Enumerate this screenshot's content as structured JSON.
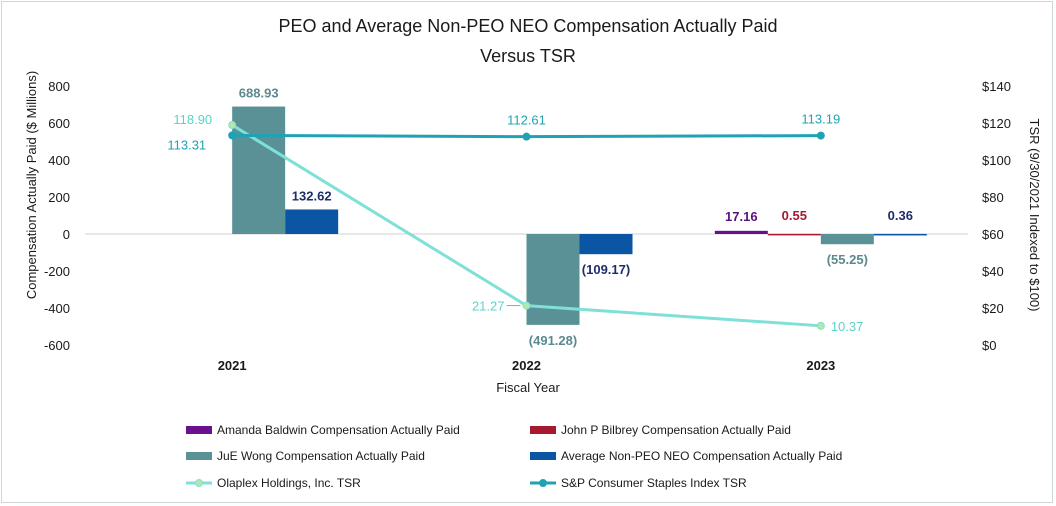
{
  "chart_data": {
    "type": "bar+line",
    "title_line1": "PEO and Average Non-PEO NEO Compensation Actually Paid",
    "title_line2": "Versus TSR",
    "xlabel": "Fiscal Year",
    "ylabel": "Compensation Actually Paid ($ Millions)",
    "y2label": "TSR (9/30/2021 Indexed to $100)",
    "categories": [
      "2021",
      "2022",
      "2023"
    ],
    "ylim": [
      -600,
      800
    ],
    "yticks": [
      800,
      600,
      400,
      200,
      0,
      -200,
      -400,
      -600
    ],
    "ytick_labels": [
      "800",
      "600",
      "400",
      "200",
      "0",
      "-200",
      "-400",
      "-600"
    ],
    "y2lim": [
      0,
      140
    ],
    "y2ticks": [
      140,
      120,
      100,
      80,
      60,
      40,
      20,
      0
    ],
    "y2tick_labels": [
      "$140",
      "$120",
      "$100",
      "$80",
      "$60",
      "$40",
      "$20",
      "$0"
    ],
    "bar_series": [
      {
        "name": "Amanda Baldwin Compensation Actually Paid",
        "color": "#6a0f8e",
        "values": [
          null,
          null,
          17.16
        ],
        "labels": [
          "",
          "",
          "17.16"
        ]
      },
      {
        "name": "John P Bilbrey Compensation Actually Paid",
        "color": "#a6192e",
        "values": [
          null,
          null,
          0.55
        ],
        "labels": [
          "",
          "",
          "0.55"
        ]
      },
      {
        "name": "JuE Wong Compensation Actually Paid",
        "color": "#5a9196",
        "values": [
          688.93,
          -491.28,
          -55.25
        ],
        "labels": [
          "688.93",
          "(491.28)",
          "(55.25)"
        ]
      },
      {
        "name": "Average Non-PEO NEO Compensation Actually Paid",
        "color": "#0b55a5",
        "values": [
          132.62,
          -109.17,
          0.36
        ],
        "labels": [
          "132.62",
          "(109.17)",
          "0.36"
        ]
      }
    ],
    "line_series": [
      {
        "name": "Olaplex Holdings, Inc. TSR",
        "color": "#7fe0d8",
        "marker_fill": "#b8e6a8",
        "values": [
          118.9,
          21.27,
          10.37
        ],
        "labels": [
          "118.90",
          "21.27",
          "10.37"
        ]
      },
      {
        "name": "S&P Consumer Staples Index TSR",
        "color": "#1fa3b4",
        "marker_fill": "#1fa3b4",
        "values": [
          113.31,
          112.61,
          113.19
        ],
        "labels": [
          "113.31",
          "112.61",
          "113.19"
        ]
      }
    ]
  }
}
